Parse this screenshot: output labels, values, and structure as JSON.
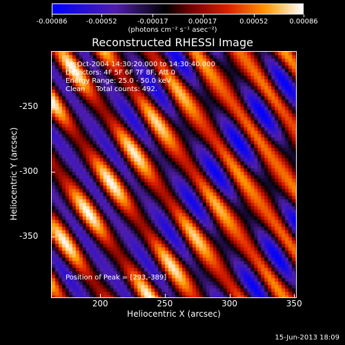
{
  "colorbar": {
    "ticks": [
      "-0.00086",
      "-0.00052",
      "-0.00017",
      "0.00017",
      "0.00052",
      "0.00086"
    ],
    "units": "(photons cm⁻² s⁻¹ asec⁻²)"
  },
  "title": "Reconstructed RHESSI Image",
  "info": {
    "time_range": "19-Oct-2004 14:30:20.000 to 14:30:40.000",
    "detectors": "Detectors: 4F 5F 6F 7F 8F, Att 0",
    "energy": "Energy Range: 25.0 - 50.0 keV",
    "clean": "Clean     Total counts: 492."
  },
  "peak": "Position of Peak = [293,-389]",
  "chart_data": {
    "type": "heatmap",
    "title": "Reconstructed RHESSI Image",
    "xlabel": "Heliocentric X (arcsec)",
    "ylabel": "Heliocentric Y (arcsec)",
    "xlim": [
      162,
      352
    ],
    "ylim": [
      -397,
      -207
    ],
    "x_ticks": [
      "200",
      "250",
      "300",
      "350"
    ],
    "y_ticks": [
      "-250",
      "-300",
      "-350"
    ],
    "colorbar_range": [
      -0.00086,
      0.00086
    ]
  },
  "footer": "15-Jun-2013 18:09"
}
